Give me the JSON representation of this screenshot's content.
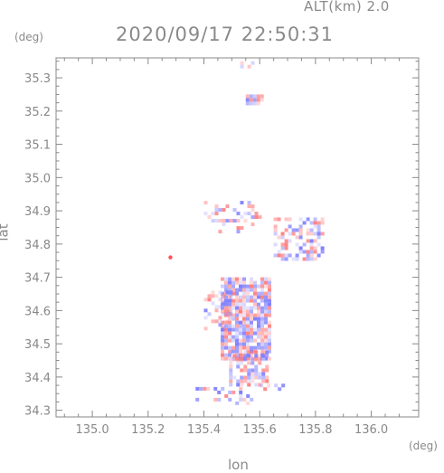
{
  "header": {
    "alt_label": "ALT(km) 2.0",
    "datetime": "2020/09/17 22:50:31"
  },
  "chart_data": {
    "type": "heatmap",
    "title": "2020/09/17 22:50:31",
    "subtitle": "ALT(km) 2.0",
    "xlabel": "lon",
    "ylabel": "lat",
    "xunit": "(deg)",
    "yunit": "(deg)",
    "xlim": [
      134.87,
      136.17
    ],
    "ylim": [
      34.28,
      35.36
    ],
    "xticks": [
      "135.0",
      "135.2",
      "135.4",
      "135.6",
      "135.8",
      "136.0"
    ],
    "yticks": [
      "34.3",
      "34.4",
      "34.5",
      "34.6",
      "34.7",
      "34.8",
      "34.9",
      "35.0",
      "35.1",
      "35.2",
      "35.3"
    ],
    "grid": false,
    "colors": {
      "positive": "#ff8080",
      "negative": "#8080ff",
      "axis": "#888888"
    },
    "clusters": [
      {
        "lon": [
          135.46,
          135.64
        ],
        "lat": [
          34.46,
          34.7
        ],
        "density": 0.85
      },
      {
        "lon": [
          135.49,
          135.62
        ],
        "lat": [
          34.38,
          34.48
        ],
        "density": 0.7
      },
      {
        "lon": [
          135.4,
          135.5
        ],
        "lat": [
          34.55,
          34.66
        ],
        "density": 0.35
      },
      {
        "lon": [
          135.65,
          135.83
        ],
        "lat": [
          34.76,
          34.88
        ],
        "density": 0.45
      },
      {
        "lon": [
          135.4,
          135.6
        ],
        "lat": [
          34.84,
          34.93
        ],
        "density": 0.25
      },
      {
        "lon": [
          135.37,
          135.57
        ],
        "lat": [
          34.32,
          34.37
        ],
        "density": 0.3
      },
      {
        "lon": [
          135.6,
          135.68
        ],
        "lat": [
          34.36,
          34.38
        ],
        "density": 0.4
      },
      {
        "lon": [
          135.55,
          135.61
        ],
        "lat": [
          35.22,
          35.25
        ],
        "density": 0.9
      },
      {
        "lon": [
          135.53,
          135.57
        ],
        "lat": [
          35.33,
          35.35
        ],
        "density": 0.3
      }
    ],
    "points": [
      {
        "lon": 135.28,
        "lat": 34.76,
        "value": 1
      }
    ]
  }
}
